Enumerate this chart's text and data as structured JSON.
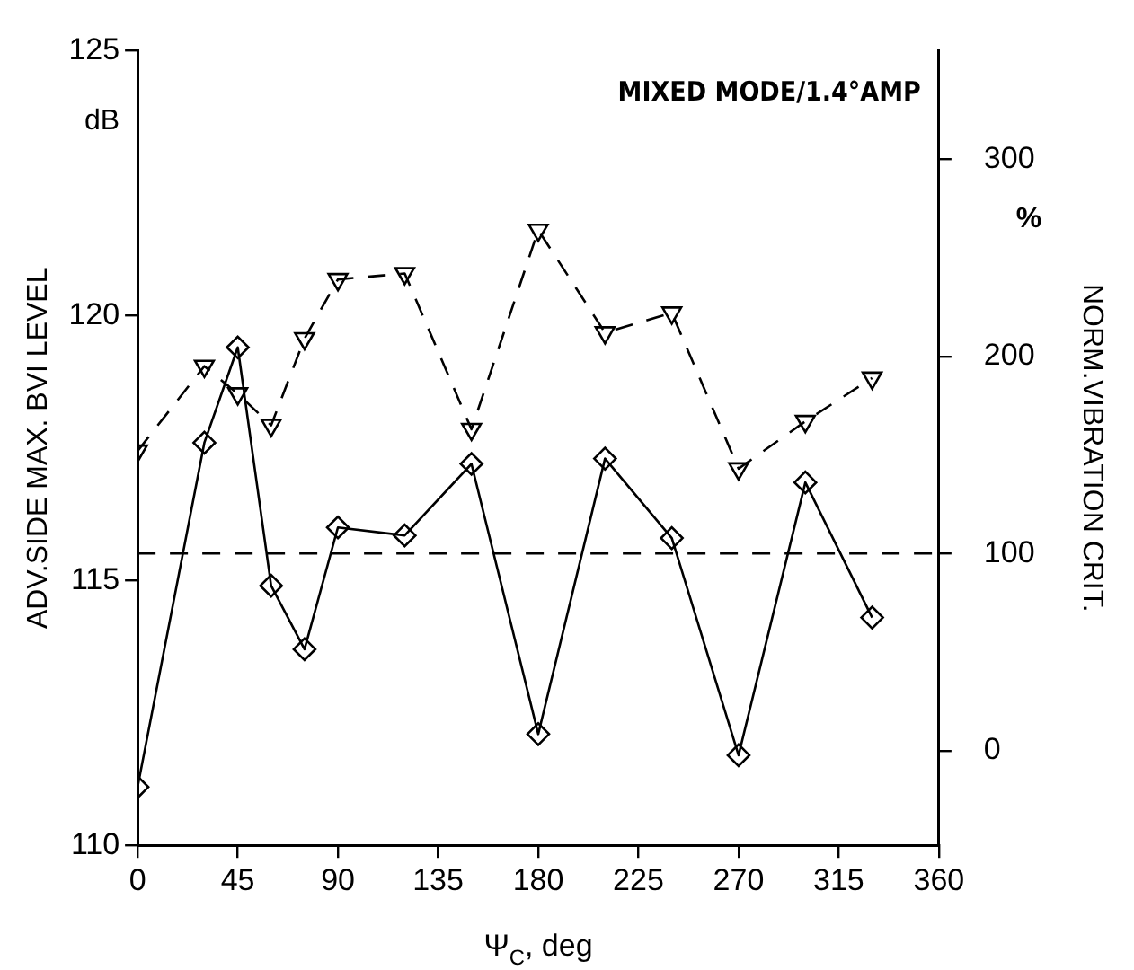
{
  "chart_data": {
    "type": "line",
    "xlabel": "Ψ$_{C}$, deg",
    "ylabel": "ADV.SIDE MAX. BVI LEVEL",
    "y2label": "NORM.VIBRATION CRIT.",
    "annotations": [
      "MIXED MODE/1.4°AMP",
      "dB",
      "%"
    ],
    "x": [
      0,
      30,
      45,
      60,
      75,
      90,
      120,
      150,
      180,
      210,
      240,
      270,
      300,
      330
    ],
    "series": [
      {
        "color": "#000000",
        "marker": "diamond",
        "line_style": "solid",
        "values": [
          111.1,
          117.6,
          119.4,
          114.9,
          113.7,
          116.0,
          115.85,
          117.2,
          112.1,
          117.3,
          115.8,
          111.7,
          116.85,
          114.3
        ]
      },
      {
        "color": "#000000",
        "marker": "triangle",
        "line_style": "dashed",
        "axis": "y2",
        "values": [
          152,
          195,
          181,
          165,
          209,
          239,
          242,
          163,
          264,
          212,
          222,
          143,
          167,
          189
        ]
      }
    ],
    "xlim": [
      0,
      360
    ],
    "xticks": [
      0,
      45,
      90,
      135,
      180,
      225,
      270,
      315,
      360
    ],
    "ylim": [
      110,
      125
    ],
    "yticks": [
      110,
      115,
      120,
      125
    ],
    "y2lim": [
      -48,
      355
    ],
    "y2ticks": [
      0,
      100,
      200,
      300
    ],
    "ref_lines": [
      {
        "axis": "y2",
        "value": 100,
        "line_style": "dashed",
        "color": "#000000"
      }
    ],
    "grid": false,
    "legend": false
  }
}
